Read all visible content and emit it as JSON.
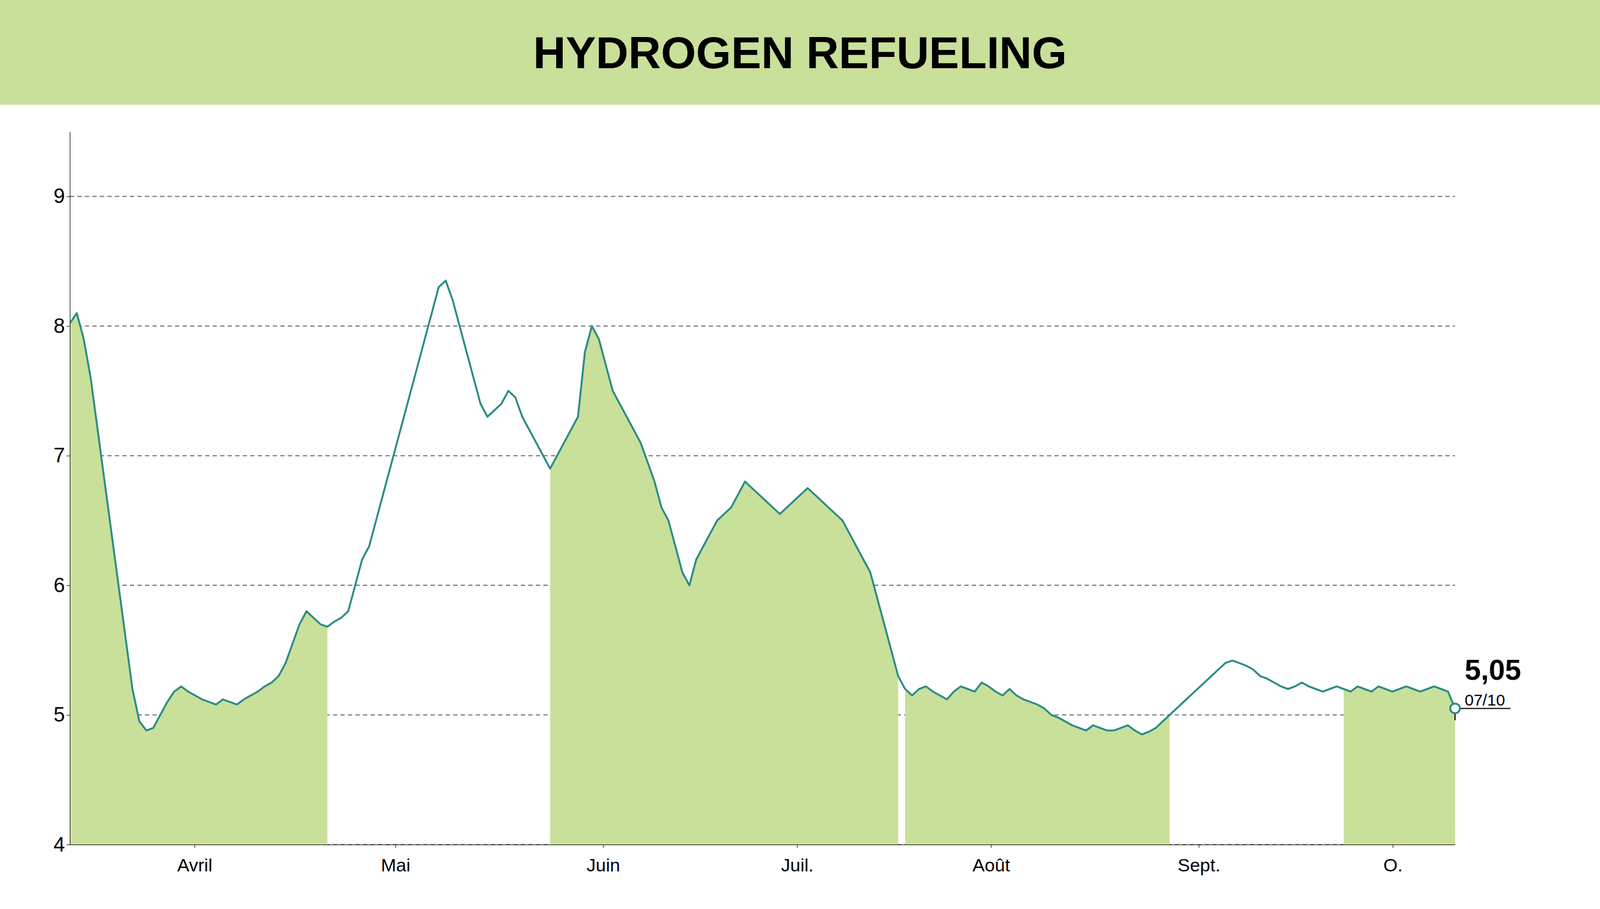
{
  "chart_data": {
    "type": "line",
    "title": "HYDROGEN REFUELING",
    "x": [
      0,
      1,
      2,
      3,
      4,
      5,
      6,
      7,
      8,
      9,
      10,
      11,
      12,
      13,
      14,
      15,
      16,
      17,
      18,
      19,
      20,
      21,
      22,
      23,
      24,
      25,
      26,
      27,
      28,
      29,
      30,
      31,
      32,
      33,
      34,
      35,
      36,
      37,
      38,
      39,
      40,
      41,
      42,
      43,
      44,
      45,
      46,
      47,
      48,
      49,
      50,
      51,
      52,
      53,
      54,
      55,
      56,
      57,
      58,
      59,
      60,
      61,
      62,
      63,
      64,
      65,
      66,
      67,
      68,
      69,
      70,
      71,
      72,
      73,
      74,
      75,
      76,
      77,
      78,
      79,
      80,
      81,
      82,
      83,
      84,
      85,
      86,
      87,
      88,
      89,
      90,
      91,
      92,
      93,
      94,
      95,
      96,
      97,
      98,
      99,
      100,
      101,
      102,
      103,
      104,
      105,
      106,
      107,
      108,
      109,
      110,
      111,
      112,
      113,
      114,
      115,
      116,
      117,
      118,
      119,
      120,
      121,
      122,
      123,
      124,
      125,
      126,
      127,
      128,
      129,
      130,
      131,
      132,
      133,
      134,
      135,
      136,
      137,
      138,
      139,
      140,
      141,
      142,
      143,
      144,
      145,
      146,
      147,
      148,
      149,
      150,
      151,
      152,
      153,
      154,
      155,
      156,
      157,
      158,
      159,
      160,
      161,
      162,
      163,
      164,
      165,
      166,
      167,
      168,
      169,
      170,
      171,
      172,
      173,
      174,
      175,
      176,
      177,
      178,
      179,
      180,
      181,
      182,
      183,
      184,
      185,
      186,
      187,
      188,
      189,
      190,
      191,
      192,
      193,
      194,
      195,
      196,
      197,
      198,
      199
    ],
    "series": [
      {
        "type": "line",
        "color": "#2a8b85",
        "values": [
          8.02,
          8.1,
          7.9,
          7.6,
          7.2,
          6.8,
          6.4,
          6.0,
          5.6,
          5.2,
          4.95,
          4.88,
          4.9,
          5.0,
          5.1,
          5.18,
          5.22,
          5.18,
          5.15,
          5.12,
          5.1,
          5.08,
          5.12,
          5.1,
          5.08,
          5.12,
          5.15,
          5.18,
          5.22,
          5.25,
          5.3,
          5.4,
          5.55,
          5.7,
          5.8,
          5.75,
          5.7,
          5.68,
          5.72,
          5.75,
          5.8,
          6.0,
          6.2,
          6.3,
          6.5,
          6.7,
          6.9,
          7.1,
          7.3,
          7.5,
          7.7,
          7.9,
          8.1,
          8.3,
          8.35,
          8.2,
          8.0,
          7.8,
          7.6,
          7.4,
          7.3,
          7.35,
          7.4,
          7.5,
          7.45,
          7.3,
          7.2,
          7.1,
          7.0,
          6.9,
          7.0,
          7.1,
          7.2,
          7.3,
          7.8,
          8.0,
          7.9,
          7.7,
          7.5,
          7.4,
          7.3,
          7.2,
          7.1,
          6.95,
          6.8,
          6.6,
          6.5,
          6.3,
          6.1,
          6.0,
          6.2,
          6.3,
          6.4,
          6.5,
          6.55,
          6.6,
          6.7,
          6.8,
          6.75,
          6.7,
          6.65,
          6.6,
          6.55,
          6.6,
          6.65,
          6.7,
          6.75,
          6.7,
          6.65,
          6.6,
          6.55,
          6.5,
          6.4,
          6.3,
          6.2,
          6.1,
          5.9,
          5.7,
          5.5,
          5.3,
          5.2,
          5.15,
          5.2,
          5.22,
          5.18,
          5.15,
          5.12,
          5.18,
          5.22,
          5.2,
          5.18,
          5.25,
          5.22,
          5.18,
          5.15,
          5.2,
          5.15,
          5.12,
          5.1,
          5.08,
          5.05,
          5.0,
          4.98,
          4.95,
          4.92,
          4.9,
          4.88,
          4.92,
          4.9,
          4.88,
          4.88,
          4.9,
          4.92,
          4.88,
          4.85,
          4.87,
          4.9,
          4.95,
          5.0,
          5.05,
          5.1,
          5.15,
          5.2,
          5.25,
          5.3,
          5.35,
          5.4,
          5.42,
          5.4,
          5.38,
          5.35,
          5.3,
          5.28,
          5.25,
          5.22,
          5.2,
          5.22,
          5.25,
          5.22,
          5.2,
          5.18,
          5.2,
          5.22,
          5.2,
          5.18,
          5.22,
          5.2,
          5.18,
          5.22,
          5.2,
          5.18,
          5.2,
          5.22,
          5.2,
          5.18,
          5.2,
          5.22,
          5.2,
          5.18,
          5.05
        ]
      },
      {
        "type": "area",
        "color": "#c8e09a",
        "values": [
          8.02,
          8.1,
          7.9,
          7.6,
          7.2,
          6.8,
          6.4,
          6.0,
          5.6,
          5.2,
          4.95,
          4.88,
          4.9,
          5.0,
          5.1,
          5.18,
          5.22,
          5.18,
          5.15,
          5.12,
          5.1,
          5.08,
          5.12,
          5.1,
          5.08,
          5.12,
          5.15,
          5.18,
          5.22,
          5.25,
          5.3,
          5.4,
          5.55,
          5.7,
          5.8,
          5.75,
          5.7,
          5.68,
          null,
          null,
          null,
          null,
          null,
          null,
          null,
          null,
          null,
          null,
          null,
          null,
          null,
          null,
          null,
          null,
          null,
          null,
          null,
          null,
          null,
          null,
          null,
          null,
          null,
          null,
          null,
          null,
          null,
          null,
          null,
          null,
          null,
          null,
          null,
          null,
          null,
          null,
          null,
          null,
          null,
          null,
          null,
          null,
          null,
          null,
          null,
          null,
          null,
          null,
          null,
          null,
          null,
          null,
          null,
          null,
          null,
          null,
          null,
          null,
          null,
          null,
          null,
          null,
          null,
          null,
          null,
          null,
          null,
          null,
          null,
          null,
          null,
          null,
          null,
          null,
          null,
          null,
          null,
          null,
          null,
          null,
          5.2,
          5.15,
          5.2,
          5.22,
          5.18,
          5.15,
          5.12,
          5.18,
          5.22,
          5.2,
          5.18,
          5.25,
          5.22,
          5.18,
          5.15,
          5.2,
          5.15,
          5.12,
          5.1,
          5.08,
          5.05,
          5.0,
          4.98,
          4.95,
          4.92,
          4.9,
          4.88,
          4.92,
          4.9,
          4.88,
          4.88,
          4.9,
          4.92,
          4.88,
          4.85,
          4.87,
          4.9,
          4.95,
          5.0,
          null,
          null,
          null,
          null,
          null,
          null,
          null,
          null,
          null,
          null,
          null,
          null,
          null,
          null,
          null,
          null,
          null,
          null,
          null,
          null,
          null,
          null,
          null,
          null,
          null,
          null,
          null,
          null,
          null,
          null,
          null,
          null,
          null,
          null,
          null,
          null,
          null,
          null,
          null,
          null,
          null
        ]
      },
      {
        "type": "area",
        "color": "#c8e09a",
        "values": [
          null,
          null,
          null,
          null,
          null,
          null,
          null,
          null,
          null,
          null,
          null,
          null,
          null,
          null,
          null,
          null,
          null,
          null,
          null,
          null,
          null,
          null,
          null,
          null,
          null,
          null,
          null,
          null,
          null,
          null,
          null,
          null,
          null,
          null,
          null,
          null,
          null,
          null,
          null,
          null,
          null,
          null,
          null,
          null,
          null,
          null,
          null,
          null,
          null,
          null,
          null,
          null,
          null,
          null,
          null,
          null,
          null,
          null,
          null,
          null,
          null,
          null,
          null,
          null,
          null,
          null,
          null,
          null,
          null,
          6.9,
          7.0,
          7.1,
          7.2,
          7.3,
          7.8,
          8.0,
          7.9,
          7.7,
          7.5,
          7.4,
          7.3,
          7.2,
          7.1,
          6.95,
          6.8,
          6.6,
          6.5,
          6.3,
          6.1,
          6.0,
          6.2,
          6.3,
          6.4,
          6.5,
          6.55,
          6.6,
          6.7,
          6.8,
          6.75,
          6.7,
          6.65,
          6.6,
          6.55,
          6.6,
          6.65,
          6.7,
          6.75,
          6.7,
          6.65,
          6.6,
          6.55,
          6.5,
          6.4,
          6.3,
          6.2,
          6.1,
          5.9,
          5.7,
          5.5,
          5.3,
          null,
          null,
          null,
          null,
          null,
          null,
          null,
          null,
          null,
          null,
          null,
          null,
          null,
          null,
          null,
          null,
          null,
          null,
          null,
          null,
          null,
          null,
          null,
          null,
          null,
          null,
          null,
          null,
          null,
          null,
          null,
          null,
          null,
          null,
          null,
          null,
          null,
          null,
          null,
          null,
          null,
          null,
          null,
          null,
          null,
          null,
          null,
          null,
          null,
          null,
          null,
          null,
          null,
          null,
          null,
          null,
          null,
          null,
          null,
          null,
          null,
          null,
          null,
          5.2,
          5.18,
          5.22,
          5.2,
          5.18,
          5.22,
          5.2,
          5.18,
          5.2,
          5.22,
          5.2,
          5.18,
          5.2,
          5.22,
          5.2,
          5.18,
          5.05
        ]
      }
    ],
    "xlim": [
      0,
      199
    ],
    "xticks": [
      {
        "value": 17.91,
        "label": "Avril"
      },
      {
        "value": 46.765,
        "label": "Mai"
      },
      {
        "value": 76.615,
        "label": "Juin"
      },
      {
        "value": 104.475,
        "label": "Juil."
      },
      {
        "value": 132.335,
        "label": "Août"
      },
      {
        "value": 162.185,
        "label": "Sept."
      },
      {
        "value": 190.045,
        "label": "O."
      }
    ],
    "ylim": [
      4.0,
      9.5
    ],
    "yticks": [
      4,
      5,
      6,
      7,
      8,
      9
    ],
    "grid": true,
    "annotations": [
      {
        "text": "5,05",
        "x": 199,
        "y": 5.05
      },
      {
        "text": "07/10",
        "x": 199,
        "y": 5.05
      }
    ]
  }
}
